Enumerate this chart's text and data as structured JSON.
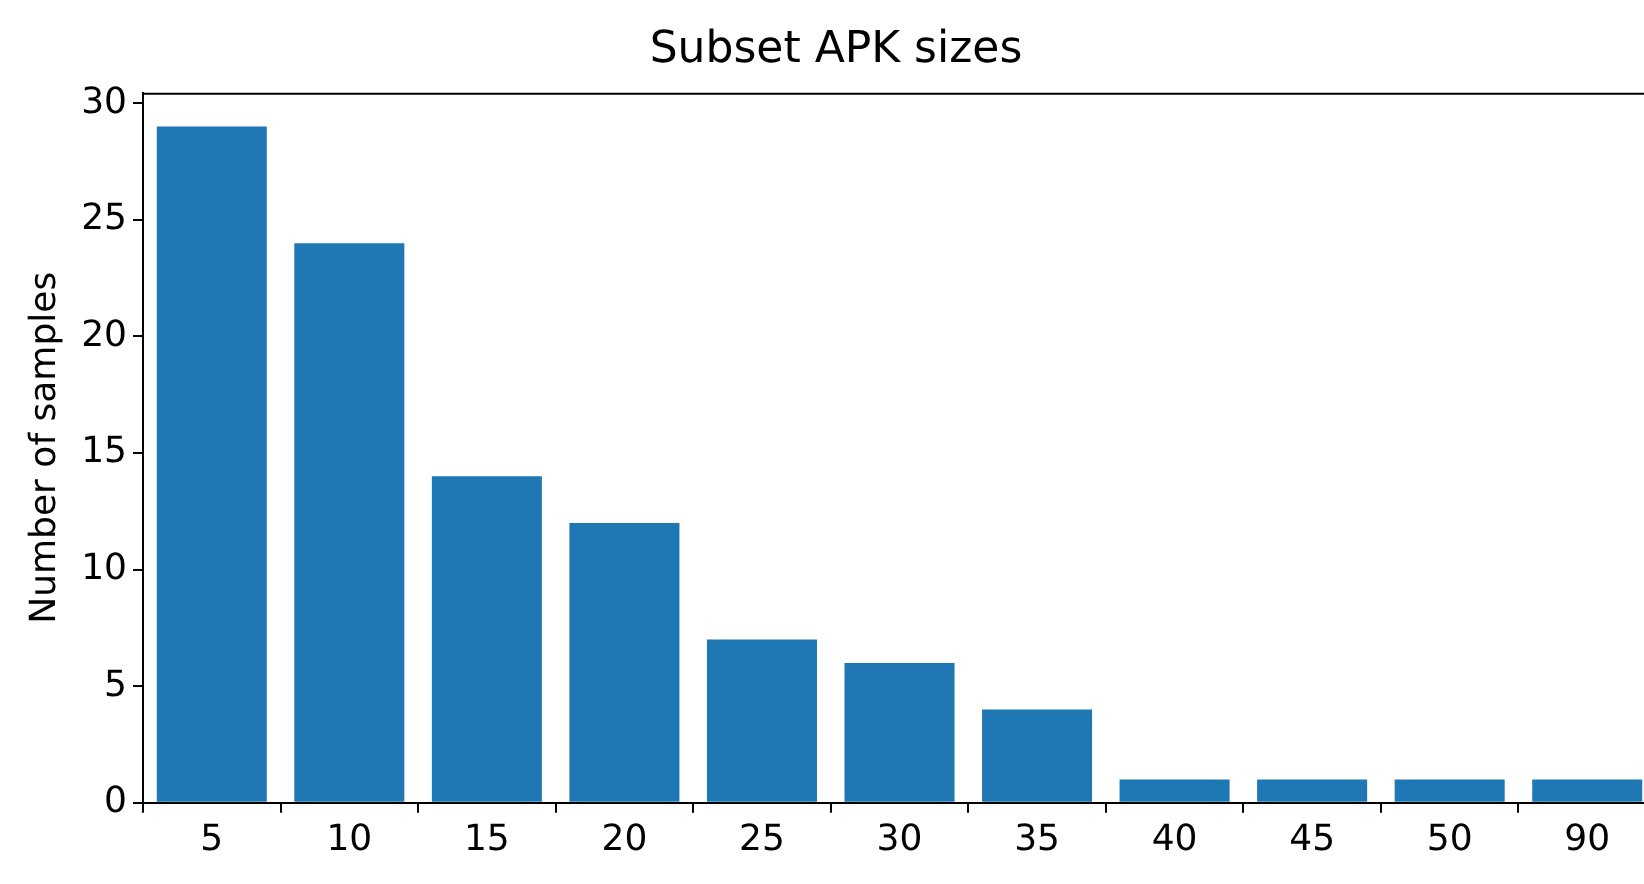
{
  "chart_data": {
    "type": "bar",
    "title": "Subset APK sizes",
    "ylabel": "Number of samples",
    "categories": [
      "5",
      "10",
      "15",
      "20",
      "25",
      "30",
      "35",
      "40",
      "45",
      "50",
      "90"
    ],
    "values": [
      29,
      24,
      14,
      12,
      7,
      6,
      4,
      1,
      1,
      1,
      1
    ],
    "color": "#1f77b4",
    "ylim": [
      0,
      30.45
    ],
    "yticks": [
      0,
      5,
      10,
      15,
      20,
      25,
      30
    ],
    "grid": false,
    "legend": false
  }
}
